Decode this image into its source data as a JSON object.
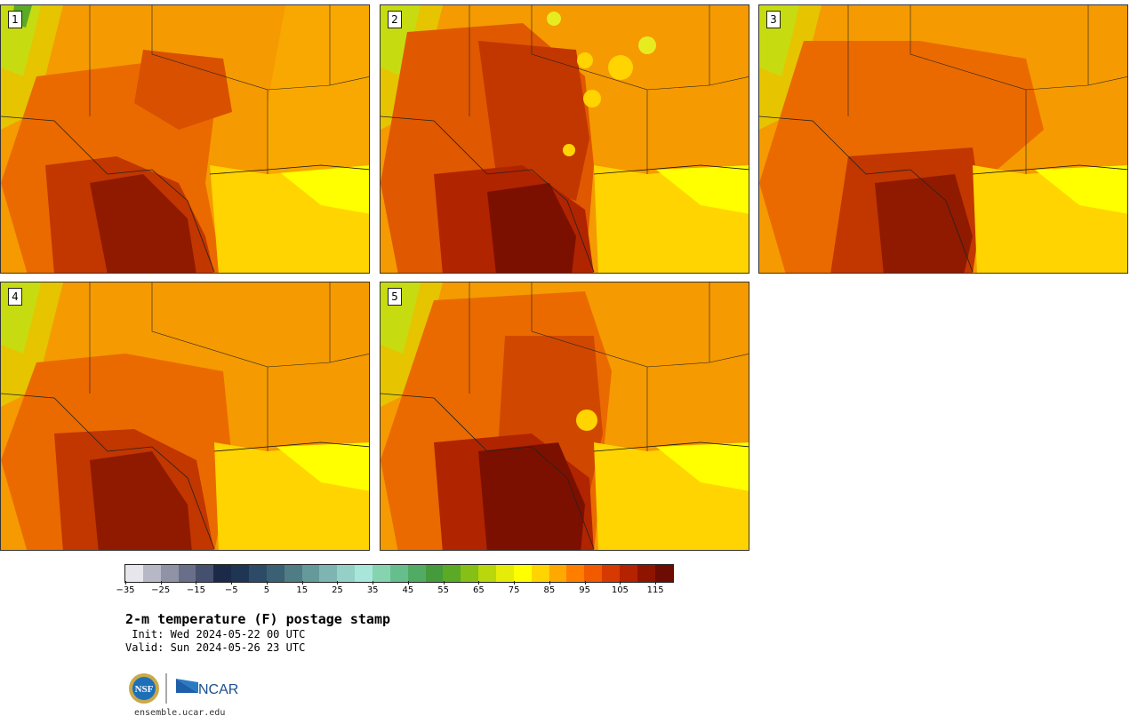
{
  "panels": [
    {
      "label": "1"
    },
    {
      "label": "2"
    },
    {
      "label": "3"
    },
    {
      "label": "4"
    },
    {
      "label": "5"
    }
  ],
  "colorbar": {
    "colors": [
      "#e6e6ec",
      "#b7b8c6",
      "#9093a6",
      "#696f88",
      "#44506e",
      "#1c2a4a",
      "#1f3554",
      "#2d4a66",
      "#3b6074",
      "#4f7c85",
      "#659a9a",
      "#7eb5b2",
      "#95d0c7",
      "#a7e6d8",
      "#86d3b0",
      "#66be8d",
      "#52ab64",
      "#459a3c",
      "#5aaa26",
      "#86bf16",
      "#b9d70c",
      "#e4ec08",
      "#ffff00",
      "#ffd400",
      "#ffa800",
      "#ff7e00",
      "#f25a00",
      "#d63a00",
      "#b52200",
      "#8f1400",
      "#6c0c02"
    ],
    "ticks": [
      "−35",
      "−25",
      "−15",
      "−5",
      "5",
      "15",
      "25",
      "35",
      "45",
      "55",
      "65",
      "75",
      "85",
      "95",
      "105",
      "115"
    ]
  },
  "title": "2-m temperature (F) postage stamp",
  "init_text": " Init: Wed 2024-05-22 00 UTC",
  "valid_text": "Valid: Sun 2024-05-26 23 UTC",
  "logos": {
    "nsf": "NSF",
    "ncar": "NCAR"
  },
  "url": "ensemble.ucar.edu"
}
